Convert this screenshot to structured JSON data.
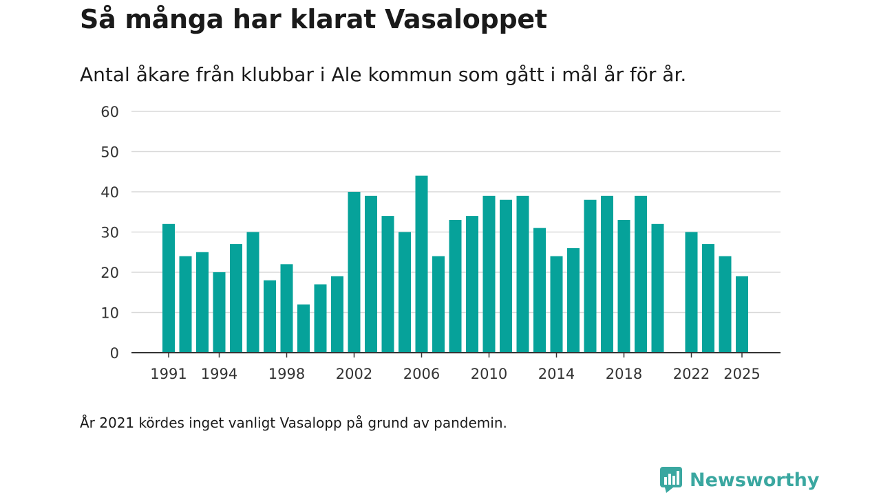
{
  "chart_data": {
    "type": "bar",
    "title": "Så många har klarat Vasaloppet",
    "subtitle": "Antal åkare från klubbar i Ale kommun som gått i mål år för år.",
    "xlabel": "",
    "ylabel": "",
    "ylim": [
      0,
      60
    ],
    "yticks": [
      0,
      10,
      20,
      30,
      40,
      50,
      60
    ],
    "xtick_labels": [
      "1991",
      "1994",
      "1998",
      "2002",
      "2006",
      "2010",
      "2014",
      "2018",
      "2022",
      "2025"
    ],
    "grid": true,
    "bar_color": "#06a29a",
    "categories": [
      "1991",
      "1992",
      "1993",
      "1994",
      "1995",
      "1996",
      "1997",
      "1998",
      "1999",
      "2000",
      "2001",
      "2002",
      "2003",
      "2004",
      "2005",
      "2006",
      "2007",
      "2008",
      "2009",
      "2010",
      "2011",
      "2012",
      "2013",
      "2014",
      "2015",
      "2016",
      "2017",
      "2018",
      "2019",
      "2020",
      "2021",
      "2022",
      "2023",
      "2024",
      "2025"
    ],
    "values": [
      32,
      24,
      25,
      20,
      27,
      30,
      18,
      22,
      12,
      17,
      19,
      40,
      39,
      34,
      30,
      44,
      24,
      33,
      34,
      39,
      38,
      39,
      31,
      24,
      26,
      38,
      39,
      33,
      39,
      32,
      null,
      30,
      27,
      24,
      19
    ],
    "note": "År 2021 kördes inget vanligt Vasalopp på grund av pandemin."
  },
  "brand": {
    "name": "Newsworthy",
    "icon": "newsworthy-logo-icon",
    "color": "#3aa7a0"
  }
}
